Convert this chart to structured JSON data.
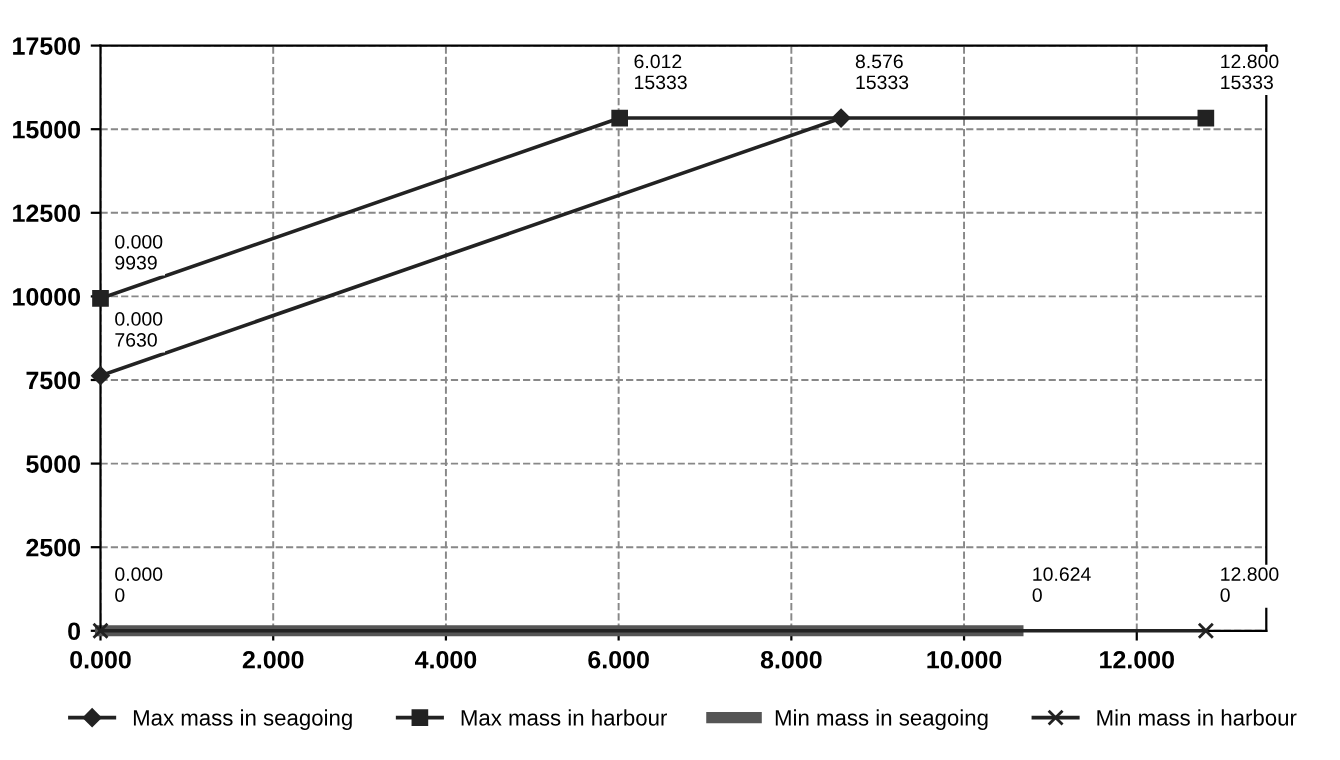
{
  "chart_data": {
    "type": "line",
    "xlim": [
      0,
      13.5
    ],
    "xticks": [
      {
        "value": 0,
        "label": "0.000"
      },
      {
        "value": 2,
        "label": "2.000"
      },
      {
        "value": 4,
        "label": "4.000"
      },
      {
        "value": 6,
        "label": "6.000"
      },
      {
        "value": 8,
        "label": "8.000"
      },
      {
        "value": 10,
        "label": "10.000"
      },
      {
        "value": 12,
        "label": "12.000"
      }
    ],
    "ylim": [
      0,
      17500
    ],
    "yticks": [
      0,
      2500,
      5000,
      7500,
      10000,
      12500,
      15000,
      17500
    ],
    "grid": true,
    "legend": "bottom",
    "line_style": "solid",
    "series": [
      {
        "name": "Max mass in seagoing",
        "color": "#222222",
        "marker": "diamond",
        "x": [
          0,
          8.576
        ],
        "values": [
          7630,
          15333
        ],
        "value_labels": [
          "0.000\n7630",
          "8.576\n15333"
        ]
      },
      {
        "name": "Max mass in harbour",
        "color": "#222222",
        "marker": "square",
        "x": [
          0,
          6.012,
          12.8
        ],
        "values": [
          9939,
          15333,
          15333
        ],
        "value_labels": [
          "0.000\n9939",
          "6.012\n15333",
          "12.800\n15333"
        ]
      },
      {
        "name": "Min mass in seagoing",
        "color": "#555555",
        "marker": "none",
        "x": [
          0,
          10.624
        ],
        "values": [
          0,
          0
        ],
        "value_labels": [
          null,
          "10.624\n0"
        ]
      },
      {
        "name": "Min mass in harbour",
        "color": "#222222",
        "marker": "cross",
        "x": [
          0,
          12.8
        ],
        "values": [
          0,
          0
        ],
        "value_labels": [
          "0.000\n0",
          "12.800\n0"
        ]
      }
    ]
  }
}
